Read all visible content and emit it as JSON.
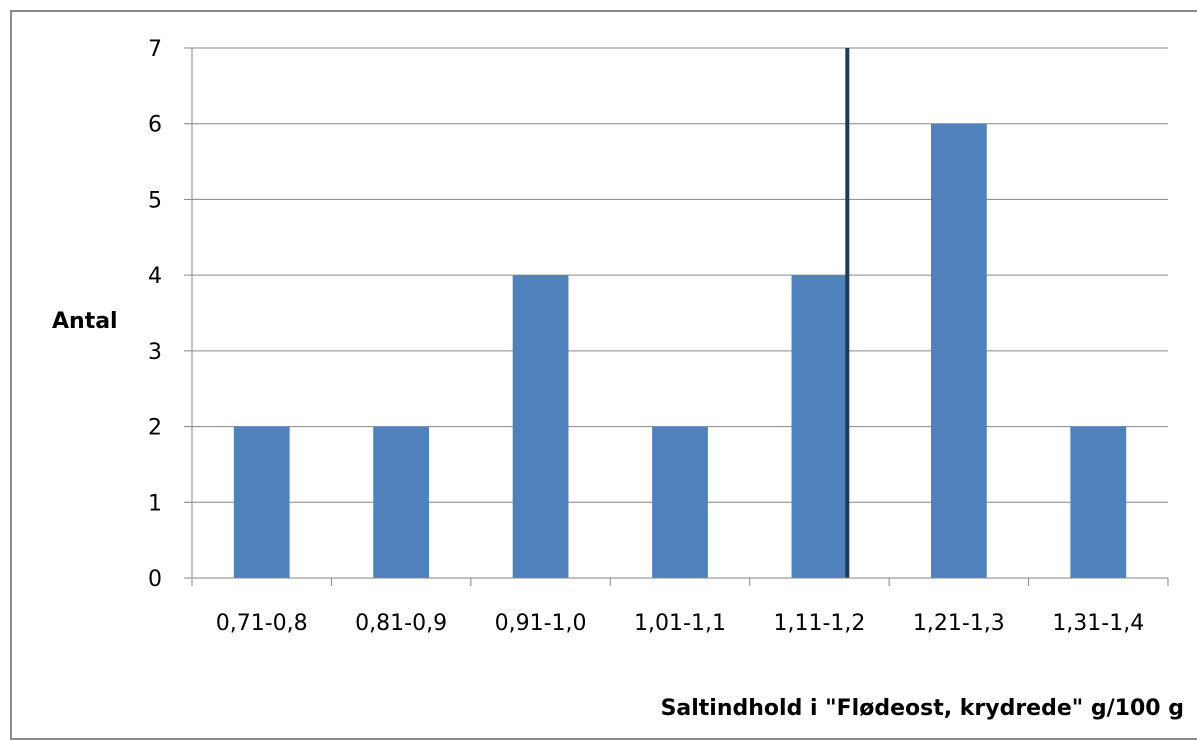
{
  "chart_data": {
    "type": "bar",
    "categories": [
      "0,71-0,8",
      "0,81-0,9",
      "0,91-1,0",
      "1,01-1,1",
      "1,11-1,2",
      "1,21-1,3",
      "1,31-1,4"
    ],
    "series": [
      {
        "values": [
          2,
          2,
          4,
          2,
          4,
          6,
          2
        ]
      }
    ],
    "xlabel": "Saltindhold i \"Flødeost, krydrede\" g/100 g",
    "ylabel": "Antal",
    "ylim": [
      0,
      7
    ],
    "yticks": [
      "0",
      "1",
      "2",
      "3",
      "4",
      "5",
      "6",
      "7"
    ],
    "grid": true,
    "legend": "none",
    "reference_line": {
      "x": 1.2,
      "color": "#1f3b5b"
    },
    "colors": {
      "bar": "#4f81bd",
      "grid": "#868686",
      "axis": "#868686"
    }
  }
}
